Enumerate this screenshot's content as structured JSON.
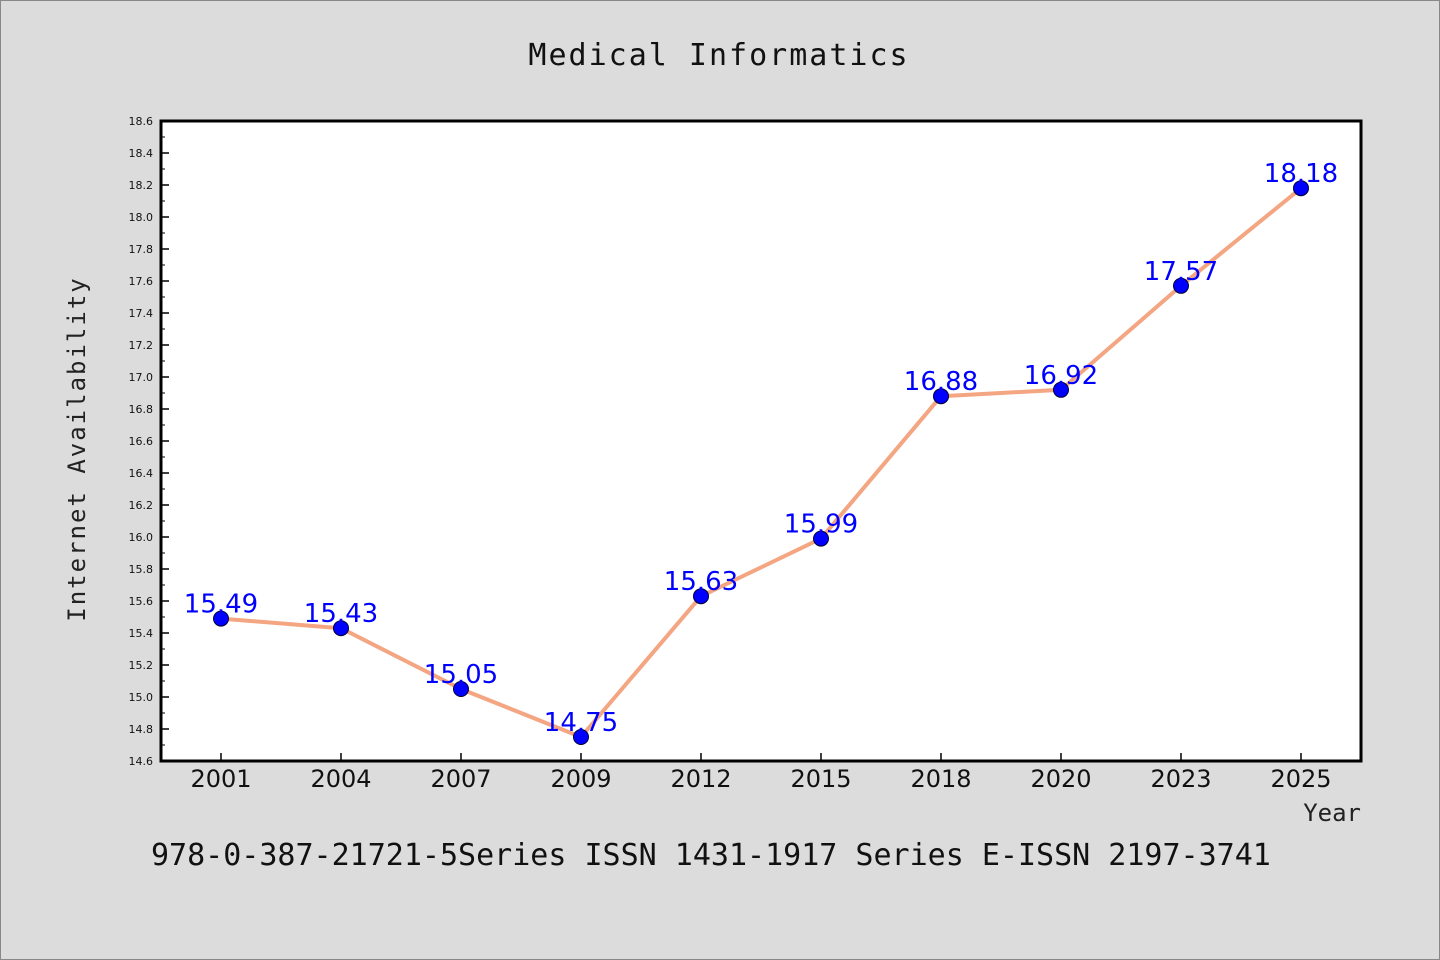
{
  "chart_data": {
    "type": "line",
    "title": "Medical Informatics",
    "xlabel": "Year",
    "ylabel": "Internet Availability",
    "categories": [
      "2001",
      "2004",
      "2007",
      "2009",
      "2012",
      "2015",
      "2018",
      "2020",
      "2023",
      "2025"
    ],
    "series": [
      {
        "values": [
          15.49,
          15.43,
          15.05,
          14.75,
          15.63,
          15.99,
          16.88,
          16.92,
          17.57,
          18.18
        ],
        "labels": [
          "15.49",
          "15.43",
          "15.05",
          "14.75",
          "15.63",
          "15.99",
          "16.88",
          "16.92",
          "17.57",
          "18.18"
        ]
      }
    ],
    "ylim": [
      14.6,
      18.6
    ],
    "yticks": [
      "14.6",
      "14.8",
      "15.0",
      "15.2",
      "15.4",
      "15.6",
      "15.8",
      "16.0",
      "16.2",
      "16.4",
      "16.6",
      "16.8",
      "17.0",
      "17.2",
      "17.4",
      "17.6",
      "17.8",
      "18.0",
      "18.2",
      "18.4",
      "18.6"
    ],
    "grid": false,
    "legend": "none",
    "caption": "978-0-387-21721-5Series ISSN 1431-1917 Series E-ISSN 2197-3741",
    "colors": {
      "line": "#f4a582",
      "marker": "#0000ff",
      "data_label": "#0000ff",
      "background": "#dcdcdc",
      "plot_background": "#ffffff"
    }
  }
}
